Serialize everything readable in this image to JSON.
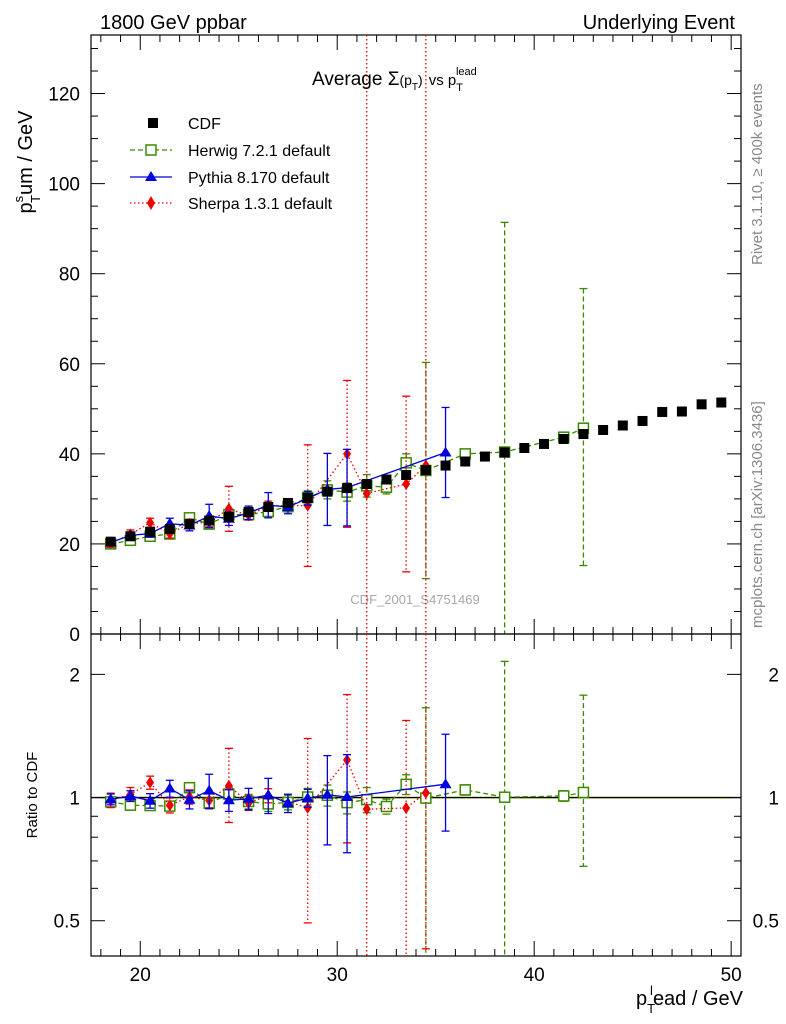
{
  "header": {
    "left": "1800 GeV ppbar",
    "right": "Underlying Event"
  },
  "side_text": {
    "rivet": "Rivet 3.1.10, ≥ 400k events",
    "source": "mcplots.cern.ch [arXiv:1306.3436]"
  },
  "watermark": "CDF_2001_S4751469",
  "colors": {
    "cdf": "#000000",
    "herwig": "#3a8a00",
    "pythia": "#0000dd",
    "sherpa": "#ee0000",
    "band": "#ddf07a"
  },
  "chart_data": [
    {
      "type": "scatter",
      "panel": "main",
      "title": "Average Σ(pT) vs pT lead",
      "title_parts": {
        "main": "Average Σ",
        "paren": "(p",
        "paren_sub": "T",
        "close": ")",
        "vs": "vs p",
        "lead_sub": "T",
        "lead_sup": "lead"
      },
      "ylabel_parts": {
        "p": "p",
        "sup": "s",
        "sub": "T",
        "rest": "um / GeV"
      },
      "xlim": [
        17.5,
        50.5
      ],
      "ylim": [
        0,
        133
      ],
      "yticks": [
        0,
        20,
        40,
        60,
        80,
        100,
        120
      ],
      "legend_position": "top-left",
      "legend": [
        {
          "key": "cdf",
          "label": "CDF"
        },
        {
          "key": "herwig",
          "label": "Herwig 7.2.1 default"
        },
        {
          "key": "pythia",
          "label": "Pythia 8.170 default"
        },
        {
          "key": "sherpa",
          "label": "Sherpa 1.3.1 default"
        }
      ],
      "series": [
        {
          "key": "cdf",
          "name": "CDF",
          "marker": "square",
          "x": [
            18.5,
            19.5,
            20.5,
            21.5,
            22.5,
            23.5,
            24.5,
            25.5,
            26.5,
            27.5,
            28.5,
            29.5,
            30.5,
            31.5,
            32.5,
            33.5,
            34.5,
            35.5,
            36.5,
            37.5,
            38.5,
            39.5,
            40.5,
            41.5,
            42.5,
            43.5,
            44.5,
            45.5,
            46.5,
            47.5,
            48.5,
            49.5
          ],
          "y": [
            20.5,
            21.7,
            22.7,
            23.3,
            24.4,
            25.2,
            26.0,
            27.1,
            28.2,
            29.1,
            30.2,
            31.6,
            32.4,
            33.3,
            34.3,
            35.3,
            36.4,
            37.4,
            38.3,
            39.4,
            40.3,
            41.3,
            42.2,
            43.3,
            44.4,
            45.3,
            46.3,
            47.3,
            49.3,
            49.4,
            51.0,
            51.4
          ]
        },
        {
          "key": "herwig",
          "name": "Herwig 7.2.1 default",
          "marker": "open-square",
          "x": [
            18.5,
            19.5,
            20.5,
            21.5,
            22.5,
            23.5,
            24.5,
            25.5,
            26.5,
            27.5,
            28.5,
            29.5,
            30.5,
            31.5,
            32.5,
            33.5,
            34.5,
            36.5,
            38.5,
            41.5,
            42.5
          ],
          "y": [
            20.0,
            20.8,
            21.7,
            22.2,
            25.8,
            24.4,
            26.5,
            26.5,
            27.2,
            28.3,
            30.3,
            32.0,
            31.5,
            32.9,
            32.6,
            38.0,
            36.3,
            40.0,
            40.4,
            43.7,
            45.7
          ],
          "yerr_lo": [
            0.5,
            0.5,
            0.5,
            0.5,
            0.8,
            0.8,
            1.0,
            1.0,
            1.2,
            1.2,
            1.5,
            2.0,
            2.0,
            2.5,
            1.5,
            2.0,
            24.0,
            1.0,
            40.4,
            1.0,
            30.5
          ],
          "yerr_hi": [
            0.5,
            0.5,
            0.5,
            0.5,
            0.8,
            0.8,
            1.0,
            1.0,
            1.2,
            1.2,
            1.5,
            2.0,
            2.0,
            2.5,
            1.5,
            2.0,
            24.0,
            1.0,
            51.0,
            1.0,
            31.0
          ]
        },
        {
          "key": "pythia",
          "name": "Pythia 8.170 default",
          "marker": "triangle",
          "x": [
            18.5,
            19.5,
            20.5,
            21.5,
            22.5,
            23.5,
            24.5,
            25.5,
            26.5,
            27.5,
            28.5,
            29.5,
            30.5,
            35.5
          ],
          "y": [
            20.3,
            21.9,
            22.3,
            24.5,
            24.1,
            26.2,
            25.6,
            26.9,
            28.6,
            28.2,
            30.1,
            32.1,
            32.5,
            40.3
          ],
          "yerr_lo": [
            0.7,
            0.7,
            0.8,
            1.2,
            1.2,
            2.6,
            1.5,
            1.5,
            2.8,
            1.5,
            1.5,
            8.0,
            8.5,
            10.0
          ],
          "yerr_hi": [
            0.7,
            0.7,
            0.8,
            1.2,
            1.2,
            2.6,
            1.5,
            1.5,
            2.8,
            1.5,
            1.5,
            8.0,
            8.5,
            10.0
          ]
        },
        {
          "key": "sherpa",
          "name": "Sherpa 1.3.1 default",
          "marker": "diamond",
          "x": [
            18.5,
            19.5,
            20.5,
            21.5,
            22.5,
            23.5,
            24.5,
            25.5,
            26.5,
            28.5,
            30.5,
            31.5,
            33.5,
            34.5
          ],
          "y": [
            20.2,
            22.1,
            24.7,
            22.3,
            24.5,
            24.8,
            27.8,
            26.3,
            28.5,
            28.5,
            40.0,
            31.2,
            33.3,
            37.4
          ],
          "yerr_lo": [
            1.0,
            1.0,
            1.0,
            1.0,
            1.0,
            1.0,
            5.0,
            1.0,
            1.0,
            13.5,
            16.3,
            40.0,
            19.5,
            40.0
          ],
          "yerr_hi": [
            1.0,
            1.0,
            1.0,
            1.0,
            1.0,
            1.0,
            5.0,
            1.0,
            1.0,
            13.5,
            16.3,
            140.0,
            19.5,
            140.0
          ]
        }
      ]
    },
    {
      "type": "scatter",
      "panel": "ratio",
      "ylabel": "Ratio to CDF",
      "xlabel_parts": {
        "p": "p",
        "sub": "T",
        "sup": "l",
        "rest": "ead / GeV"
      },
      "xlim": [
        17.5,
        50.5
      ],
      "ylim": [
        0.41,
        2.51
      ],
      "ylog": true,
      "yticks": [
        0.5,
        1,
        2
      ],
      "ytick_labels": [
        "0.5",
        "1",
        "2"
      ],
      "xticks": [
        20,
        30,
        40,
        50
      ],
      "series": [
        {
          "key": "herwig",
          "name": "Herwig 7.2.1 default",
          "x": [
            18.5,
            19.5,
            20.5,
            21.5,
            22.5,
            23.5,
            24.5,
            25.5,
            26.5,
            27.5,
            28.5,
            29.5,
            30.5,
            31.5,
            32.5,
            33.5,
            34.5,
            36.5,
            38.5,
            41.5,
            42.5
          ],
          "y": [
            0.976,
            0.958,
            0.956,
            0.953,
            1.057,
            0.968,
            1.02,
            0.978,
            0.965,
            0.973,
            1.003,
            1.013,
            0.972,
            0.988,
            0.951,
            1.077,
            0.997,
            1.044,
            1.002,
            1.009,
            1.029
          ],
          "yerr_lo": [
            0.02,
            0.02,
            0.02,
            0.02,
            0.03,
            0.03,
            0.04,
            0.04,
            0.04,
            0.04,
            0.05,
            0.06,
            0.06,
            0.07,
            0.04,
            0.06,
            0.66,
            0.03,
            0.59,
            0.03,
            0.35
          ],
          "yerr_hi": [
            0.02,
            0.02,
            0.02,
            0.02,
            0.03,
            0.03,
            0.04,
            0.04,
            0.04,
            0.04,
            0.05,
            0.06,
            0.06,
            0.07,
            0.04,
            0.06,
            0.66,
            0.03,
            1.15,
            0.03,
            0.75
          ]
        },
        {
          "key": "pythia",
          "name": "Pythia 8.170 default",
          "x": [
            18.5,
            19.5,
            20.5,
            21.5,
            22.5,
            23.5,
            24.5,
            25.5,
            26.5,
            27.5,
            28.5,
            29.5,
            30.5,
            35.5
          ],
          "y": [
            0.99,
            1.009,
            0.982,
            1.052,
            0.988,
            1.04,
            0.985,
            0.993,
            1.014,
            0.969,
            0.997,
            1.016,
            1.003,
            1.078
          ],
          "yerr_lo": [
            0.03,
            0.03,
            0.04,
            0.05,
            0.05,
            0.1,
            0.06,
            0.06,
            0.1,
            0.05,
            0.05,
            0.25,
            0.27,
            0.25
          ],
          "yerr_hi": [
            0.03,
            0.03,
            0.04,
            0.05,
            0.05,
            0.1,
            0.06,
            0.06,
            0.1,
            0.05,
            0.05,
            0.25,
            0.27,
            0.35
          ]
        },
        {
          "key": "sherpa",
          "name": "Sherpa 1.3.1 default",
          "x": [
            18.5,
            19.5,
            20.5,
            21.5,
            22.5,
            23.5,
            24.5,
            25.5,
            26.5,
            28.5,
            30.5,
            31.5,
            33.5,
            34.5
          ],
          "y": [
            0.985,
            1.018,
            1.088,
            0.957,
            1.004,
            0.984,
            1.069,
            0.97,
            1.011,
            0.944,
            1.235,
            0.937,
            0.943,
            1.027
          ],
          "yerr_lo": [
            0.04,
            0.04,
            0.04,
            0.04,
            0.04,
            0.04,
            0.2,
            0.04,
            0.04,
            0.45,
            0.46,
            0.6,
            0.55,
            0.6
          ],
          "yerr_hi": [
            0.04,
            0.04,
            0.04,
            0.04,
            0.04,
            0.04,
            0.25,
            0.04,
            0.04,
            0.45,
            0.55,
            2.0,
            0.6,
            2.0
          ]
        }
      ]
    }
  ]
}
